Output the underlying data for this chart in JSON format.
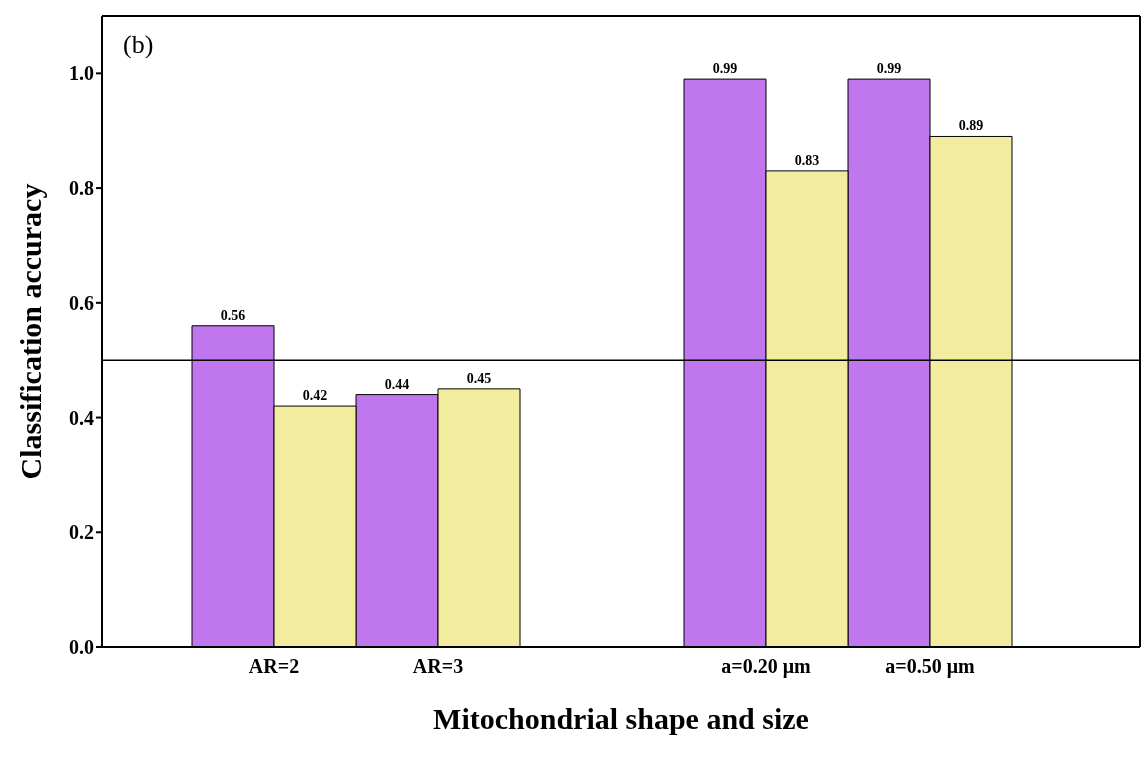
{
  "chart_data": {
    "type": "bar",
    "xlabel": "Mitochondrial shape and size",
    "ylabel": "Classification accuracy",
    "annotations": [
      "(b)"
    ],
    "categories": [
      "AR=2",
      "AR=3",
      null,
      "a=0.20 μm",
      "a=0.50 μm"
    ],
    "series": [
      {
        "color": "#c077ee",
        "values": [
          0.56,
          0.44,
          null,
          0.99,
          0.99
        ]
      },
      {
        "color": "#f2ec9f",
        "values": [
          0.42,
          0.45,
          null,
          0.83,
          0.89
        ]
      }
    ],
    "ylim": [
      0,
      1.1
    ],
    "yticks": [
      {
        "value": 0,
        "label": "0.0"
      },
      {
        "value": 0.2,
        "label": "0.2"
      },
      {
        "value": 0.4,
        "label": "0.4"
      },
      {
        "value": 0.6,
        "label": "0.6"
      },
      {
        "value": 0.8,
        "label": "0.8"
      },
      {
        "value": 1,
        "label": "1.0"
      }
    ],
    "ref_lines": [
      {
        "axis": "y",
        "value": 0.5,
        "color": "#000000"
      }
    ],
    "data_labels": true,
    "grid": false,
    "legend": false
  }
}
